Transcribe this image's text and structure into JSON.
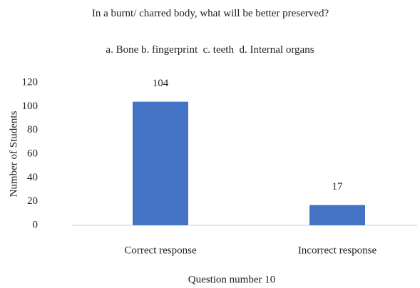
{
  "chart_data": {
    "type": "bar",
    "title": "In a burnt/ charred body, what will be better preserved?",
    "subtitle": "a. Bone b. fingerprint  c. teeth  d. Internal organs",
    "x_label": "Question number 10",
    "y_label": "Number of Students",
    "categories": [
      "Correct response",
      "Incorrect response"
    ],
    "values": [
      104,
      17
    ],
    "color": "#4472c4",
    "ylim": [
      0,
      120
    ],
    "yticks": [
      0,
      20,
      40,
      60,
      80,
      100,
      120
    ],
    "grid": false
  }
}
